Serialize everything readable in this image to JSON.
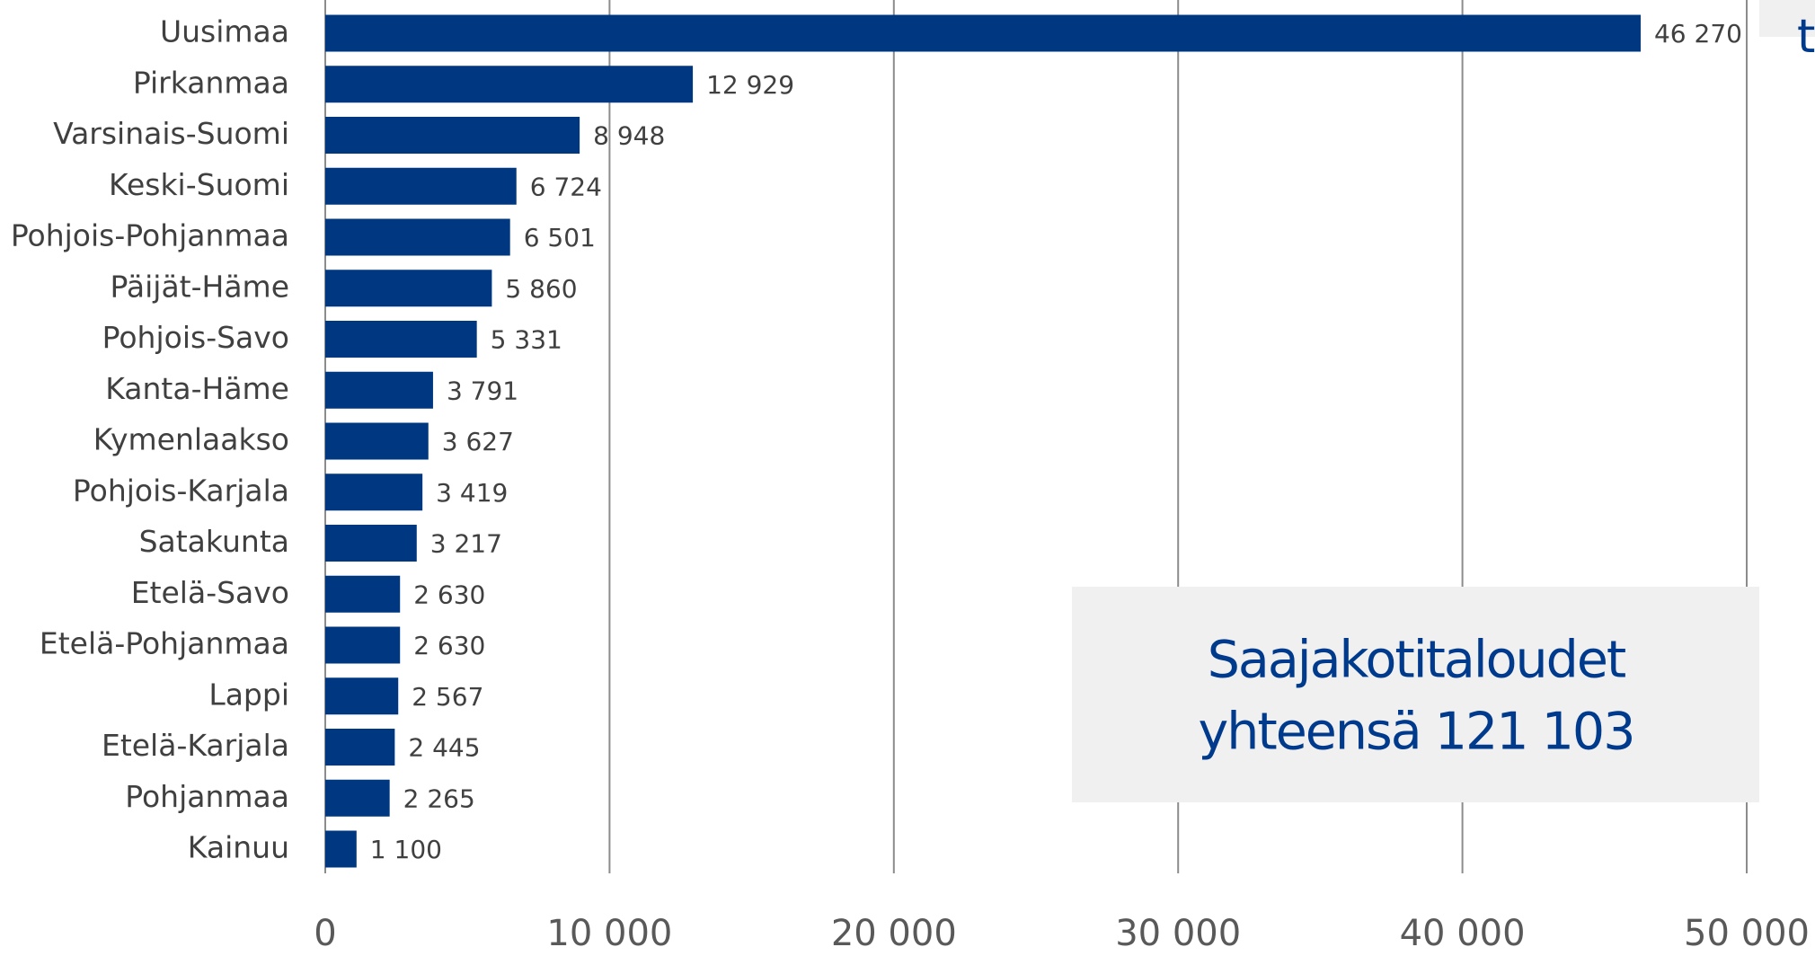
{
  "chart_data": {
    "type": "bar",
    "orientation": "horizontal",
    "categories": [
      "Uusimaa",
      "Pirkanmaa",
      "Varsinais-Suomi",
      "Keski-Suomi",
      "Pohjois-Pohjanmaa",
      "Päijät-Häme",
      "Pohjois-Savo",
      "Kanta-Häme",
      "Kymenlaakso",
      "Pohjois-Karjala",
      "Satakunta",
      "Etelä-Savo",
      "Etelä-Pohjanmaa",
      "Lappi",
      "Etelä-Karjala",
      "Pohjanmaa",
      "Kainuu"
    ],
    "values": [
      46270,
      12929,
      8948,
      6724,
      6501,
      5860,
      5331,
      3791,
      3627,
      3419,
      3217,
      2630,
      2630,
      2567,
      2445,
      2265,
      1100
    ],
    "value_labels": [
      "46 270",
      "12 929",
      "8 948",
      "6 724",
      "6 501",
      "5 860",
      "5 331",
      "3 791",
      "3 627",
      "3 419",
      "3 217",
      "2 630",
      "2 630",
      "2 567",
      "2 445",
      "2 265",
      "1 100"
    ],
    "color": "#003781",
    "xlim": [
      0,
      50000
    ],
    "xticks": [
      0,
      {
        "value": 10000,
        "label": "10 000"
      },
      {
        "value": 20000,
        "label": "20 000"
      },
      {
        "value": 30000,
        "label": "30 000"
      },
      {
        "value": 40000,
        "label": "40 000"
      },
      {
        "value": 50000,
        "label": "50 000"
      }
    ],
    "grid": true,
    "annotation": [
      "Saajakotitaloudet",
      "yhteensä 121 103"
    ],
    "corner_fragment": "t"
  }
}
